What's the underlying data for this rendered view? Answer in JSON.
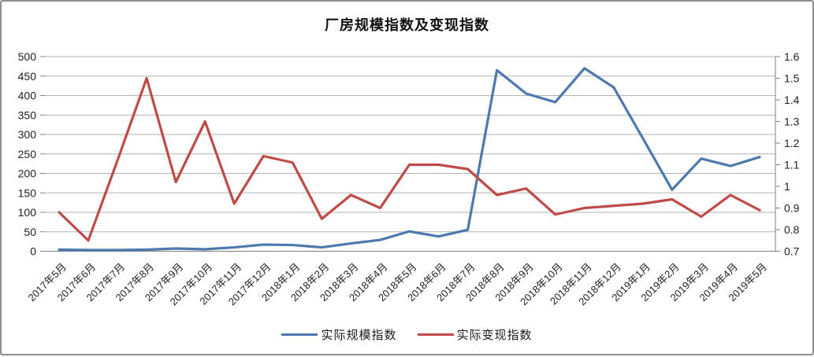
{
  "chart_data": {
    "type": "line",
    "title": "厂房规模指数及变现指数",
    "categories": [
      "2017年5月",
      "2017年6月",
      "2017年7月",
      "2017年8月",
      "2017年9月",
      "2017年10月",
      "2017年11月",
      "2017年12月",
      "2018年1月",
      "2018年2月",
      "2018年3月",
      "2018年4月",
      "2018年5月",
      "2018年6月",
      "2018年7月",
      "2018年8月",
      "2018年9月",
      "2018年10月",
      "2018年11月",
      "2018年12月",
      "2019年1月",
      "2019年2月",
      "2019年3月",
      "2019年4月",
      "2019年5月"
    ],
    "series": [
      {
        "name": "实际规模指数",
        "axis": "left",
        "color": "#4D79AE",
        "values": [
          4,
          3,
          3,
          4,
          7,
          5,
          10,
          17,
          16,
          10,
          20,
          29,
          51,
          38,
          55,
          465,
          405,
          383,
          470,
          421,
          290,
          158,
          238,
          219,
          242
        ]
      },
      {
        "name": "实际变现指数",
        "axis": "right",
        "color": "#BE4B48",
        "values": [
          0.88,
          0.75,
          1.12,
          1.5,
          1.02,
          1.3,
          0.92,
          1.14,
          1.11,
          0.85,
          0.96,
          0.9,
          1.1,
          1.1,
          1.08,
          0.96,
          0.99,
          0.87,
          0.9,
          0.91,
          0.92,
          0.94,
          0.86,
          0.96,
          0.89
        ]
      }
    ],
    "left_axis": {
      "min": 0,
      "max": 500,
      "step": 50,
      "tick_labels": [
        "0",
        "50",
        "100",
        "150",
        "200",
        "250",
        "300",
        "350",
        "400",
        "450",
        "500"
      ]
    },
    "right_axis": {
      "min": 0.7,
      "max": 1.6,
      "step": 0.1,
      "tick_labels": [
        "0.7",
        "0.8",
        "0.9",
        "1",
        "1.1",
        "1.2",
        "1.3",
        "1.4",
        "1.5",
        "1.6"
      ]
    },
    "grid": true,
    "legend_position": "bottom",
    "colors": {
      "grid_line": "#B3B3B3",
      "axis_line": "#808080",
      "tick_text": "#1f1f1f"
    }
  }
}
